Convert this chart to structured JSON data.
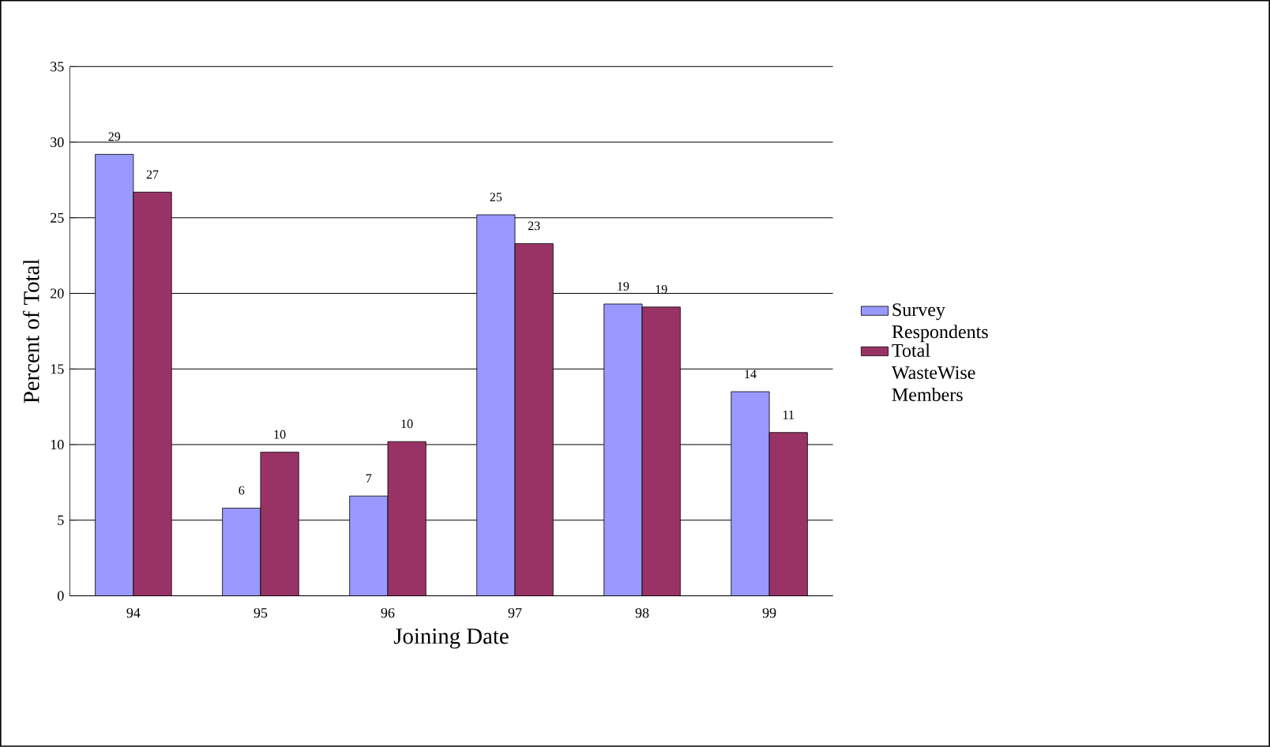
{
  "chart_data": {
    "type": "bar",
    "xlabel": "Joining Date",
    "ylabel": "Percent of Total",
    "categories": [
      "94",
      "95",
      "96",
      "97",
      "98",
      "99"
    ],
    "series": [
      {
        "name": "Survey Respondents",
        "color": "#9999ff",
        "values": [
          29.2,
          5.8,
          6.6,
          25.2,
          19.3,
          13.5
        ],
        "value_labels": [
          "29",
          "6",
          "7",
          "25",
          "19",
          "14"
        ]
      },
      {
        "name": "Total WasteWise Members",
        "color": "#993366",
        "values": [
          26.7,
          9.5,
          10.2,
          23.3,
          19.1,
          10.8
        ],
        "value_labels": [
          "27",
          "10",
          "10",
          "23",
          "19",
          "11"
        ]
      }
    ],
    "ylim": [
      0,
      35
    ],
    "yticks": [
      0,
      5,
      10,
      15,
      20,
      25,
      30,
      35
    ],
    "grid": "y",
    "legend": "right"
  }
}
